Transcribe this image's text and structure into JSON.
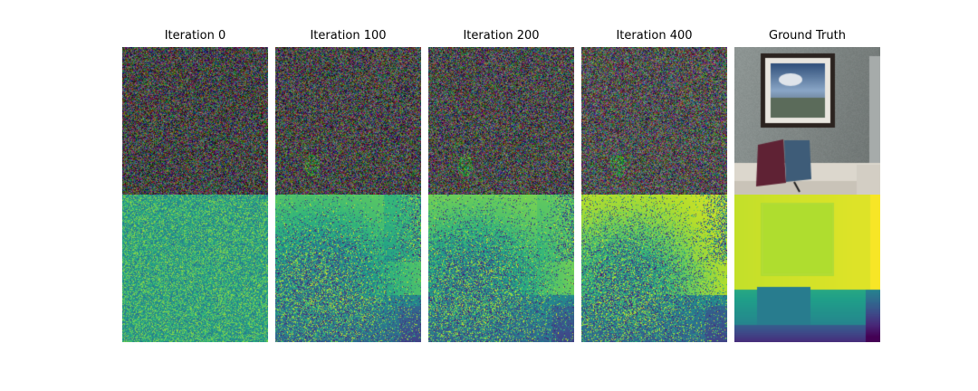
{
  "figure": {
    "columns": [
      {
        "title": "Iteration 0",
        "kind": "iteration",
        "progress": 0.0
      },
      {
        "title": "Iteration 100",
        "kind": "iteration",
        "progress": 0.25
      },
      {
        "title": "Iteration 200",
        "kind": "iteration",
        "progress": 0.5
      },
      {
        "title": "Iteration 400",
        "kind": "iteration",
        "progress": 1.0
      },
      {
        "title": "Ground Truth",
        "kind": "ground-truth",
        "progress": 1.0
      }
    ],
    "rows": [
      {
        "content": "rgb-render"
      },
      {
        "content": "depth-map"
      }
    ],
    "colormap": "viridis",
    "colors": {
      "background": "#ffffff",
      "wall": "#8e9694",
      "sofa": "#dcd7cd",
      "pillow_left": "#5f2234",
      "pillow_right": "#3e5c78",
      "frame": "#2b231f"
    }
  }
}
